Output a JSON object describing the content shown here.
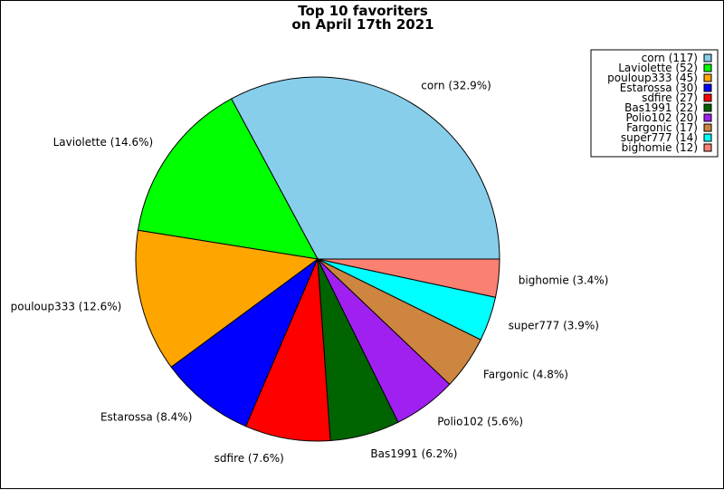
{
  "chart_data": {
    "type": "pie",
    "title": "Top 10 favoriters",
    "subtitle": "on April 17th 2021",
    "slices": [
      {
        "label": "corn",
        "value": 117,
        "percent_label": "32.9%",
        "color": "#87ceeb"
      },
      {
        "label": "Laviolette",
        "value": 52,
        "percent_label": "14.6%",
        "color": "#00ff00"
      },
      {
        "label": "pouloup333",
        "value": 45,
        "percent_label": "12.6%",
        "color": "#ffa500"
      },
      {
        "label": "Estarossa",
        "value": 30,
        "percent_label": "8.4%",
        "color": "#0000ff"
      },
      {
        "label": "sdfire",
        "value": 27,
        "percent_label": "7.6%",
        "color": "#ff0000"
      },
      {
        "label": "Bas1991",
        "value": 22,
        "percent_label": "6.2%",
        "color": "#006400"
      },
      {
        "label": "Polio102",
        "value": 20,
        "percent_label": "5.6%",
        "color": "#a020f0"
      },
      {
        "label": "Fargonic",
        "value": 17,
        "percent_label": "4.8%",
        "color": "#cd853f"
      },
      {
        "label": "super777",
        "value": 14,
        "percent_label": "3.9%",
        "color": "#00ffff"
      },
      {
        "label": "bighomie",
        "value": 12,
        "percent_label": "3.4%",
        "color": "#fa8072"
      }
    ],
    "legend_position": "top-right"
  }
}
